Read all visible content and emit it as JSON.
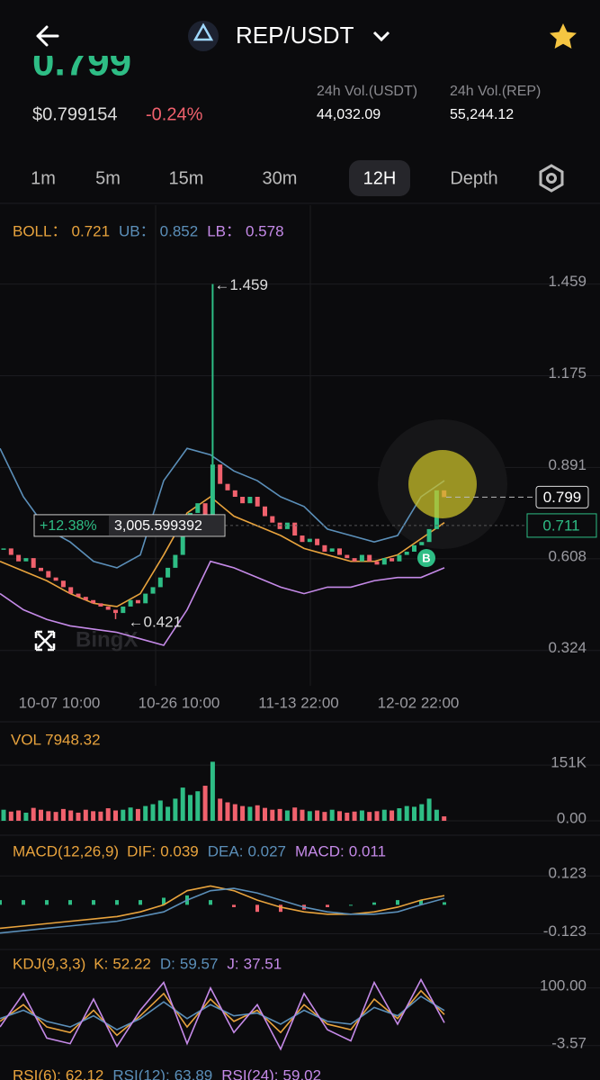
{
  "header": {
    "pair": "REP/USDT",
    "big_price": "0.799"
  },
  "ticker": {
    "price": "$0.799154",
    "change": "-0.24%",
    "stats": [
      {
        "label": "24h Vol.(USDT)",
        "value": "44,032.09"
      },
      {
        "label": "24h Vol.(REP)",
        "value": "55,244.12"
      }
    ]
  },
  "tabs": [
    "1m",
    "5m",
    "15m",
    "30m",
    "12H",
    "Depth"
  ],
  "active_tab": 4,
  "price_chart": {
    "type": "candlestick",
    "ylim": [
      0.22,
      1.67
    ],
    "yticks": [
      1.459,
      1.175,
      0.891,
      0.608,
      0.324
    ],
    "xticks": [
      "10-07 10:00",
      "10-26 10:00",
      "11-13 22:00",
      "12-02 22:00"
    ],
    "legend": [
      {
        "label": "BOLL：",
        "value": "0.721",
        "color": "#e8a33d"
      },
      {
        "label": "UB：",
        "value": "0.852",
        "color": "#5b8fb9"
      },
      {
        "label": "LB：",
        "value": "0.578",
        "color": "#c58ae8"
      }
    ],
    "closes": [
      0.64,
      0.62,
      0.6,
      0.61,
      0.58,
      0.57,
      0.55,
      0.54,
      0.52,
      0.5,
      0.49,
      0.48,
      0.47,
      0.46,
      0.45,
      0.44,
      0.46,
      0.48,
      0.47,
      0.5,
      0.52,
      0.55,
      0.58,
      0.62,
      0.68,
      0.75,
      0.78,
      0.72,
      0.9,
      0.84,
      0.82,
      0.8,
      0.78,
      0.8,
      0.77,
      0.74,
      0.72,
      0.7,
      0.72,
      0.68,
      0.66,
      0.67,
      0.65,
      0.63,
      0.64,
      0.62,
      0.61,
      0.6,
      0.62,
      0.6,
      0.59,
      0.61,
      0.6,
      0.62,
      0.63,
      0.65,
      0.66,
      0.7,
      0.82,
      0.799
    ],
    "lines": [
      {
        "color": "#e8a33d",
        "values": [
          0.6,
          0.57,
          0.54,
          0.5,
          0.47,
          0.46,
          0.5,
          0.62,
          0.75,
          0.8,
          0.74,
          0.71,
          0.68,
          0.64,
          0.62,
          0.6,
          0.6,
          0.62,
          0.67,
          0.72
        ]
      },
      {
        "color": "#5b8fb9",
        "values": [
          0.95,
          0.8,
          0.7,
          0.66,
          0.6,
          0.58,
          0.62,
          0.85,
          0.95,
          0.93,
          0.88,
          0.85,
          0.8,
          0.77,
          0.7,
          0.68,
          0.66,
          0.68,
          0.8,
          0.85
        ]
      },
      {
        "color": "#c58ae8",
        "values": [
          0.5,
          0.45,
          0.42,
          0.4,
          0.39,
          0.38,
          0.36,
          0.34,
          0.45,
          0.6,
          0.58,
          0.55,
          0.52,
          0.5,
          0.52,
          0.52,
          0.54,
          0.55,
          0.55,
          0.58
        ]
      }
    ],
    "max_label": 1.459,
    "min_label": 0.421,
    "last_price": 0.799,
    "line_price": 0.711,
    "measure_pct": "+12.38%",
    "measure_value": "3,005.599392",
    "buy_marker": "B",
    "watermark": "BingX"
  },
  "volume_chart": {
    "label": "VOL 7948.32",
    "ylim": [
      0,
      200000
    ],
    "yticks": [
      {
        "value": 151000,
        "label": "151K"
      },
      {
        "value": 0,
        "label": "0.00"
      }
    ],
    "values": [
      30000,
      25000,
      28000,
      22000,
      35000,
      30000,
      26000,
      24000,
      32000,
      28000,
      22000,
      30000,
      26000,
      25000,
      34000,
      28000,
      30000,
      36000,
      32000,
      40000,
      45000,
      55000,
      38000,
      60000,
      90000,
      70000,
      80000,
      95000,
      160000,
      60000,
      50000,
      45000,
      40000,
      38000,
      42000,
      35000,
      30000,
      32000,
      28000,
      36000,
      30000,
      26000,
      28000,
      24000,
      30000,
      26000,
      22000,
      25000,
      28000,
      24000,
      26000,
      30000,
      28000,
      34000,
      40000,
      38000,
      45000,
      60000,
      30000,
      12000
    ]
  },
  "macd_chart": {
    "ylim": [
      -0.19,
      0.25
    ],
    "yticks": [
      0.123,
      -0.123
    ],
    "legend": [
      {
        "label": "MACD(12,26,9)",
        "value": "",
        "color": "#e8a33d"
      },
      {
        "label": "DIF:",
        "value": "0.039",
        "color": "#e8a33d"
      },
      {
        "label": "DEA:",
        "value": "0.027",
        "color": "#5b8fb9"
      },
      {
        "label": "MACD:",
        "value": "0.011",
        "color": "#c58ae8"
      }
    ],
    "lines": [
      {
        "color": "#e8a33d",
        "values": [
          -0.1,
          -0.09,
          -0.08,
          -0.07,
          -0.06,
          -0.05,
          -0.03,
          0.0,
          0.06,
          0.08,
          0.06,
          0.02,
          -0.01,
          -0.03,
          -0.04,
          -0.04,
          -0.03,
          -0.01,
          0.02,
          0.039
        ]
      },
      {
        "color": "#5b8fb9",
        "values": [
          -0.12,
          -0.11,
          -0.1,
          -0.09,
          -0.08,
          -0.07,
          -0.05,
          -0.03,
          0.02,
          0.06,
          0.07,
          0.05,
          0.02,
          -0.01,
          -0.03,
          -0.04,
          -0.04,
          -0.03,
          0.0,
          0.027
        ]
      }
    ],
    "hist": [
      0.02,
      0.02,
      0.02,
      0.02,
      0.02,
      0.02,
      0.02,
      0.03,
      0.04,
      0.02,
      -0.01,
      -0.03,
      -0.03,
      -0.02,
      -0.01,
      0.0,
      0.01,
      0.02,
      0.02,
      0.011
    ]
  },
  "kdj_chart": {
    "ylim": [
      -33,
      153
    ],
    "yticks": [
      {
        "value": 100,
        "label": "100.00"
      },
      -3.57
    ],
    "legend": [
      {
        "label": "KDJ(9,3,3)",
        "value": "",
        "color": "#e8a33d"
      },
      {
        "label": "K:",
        "value": "52.22",
        "color": "#e8a33d"
      },
      {
        "label": "D:",
        "value": "59.57",
        "color": "#5b8fb9"
      },
      {
        "label": "J:",
        "value": "37.51",
        "color": "#c58ae8"
      }
    ],
    "lines": [
      {
        "color": "#e8a33d",
        "values": [
          40,
          70,
          30,
          20,
          60,
          15,
          50,
          90,
          30,
          80,
          40,
          60,
          20,
          70,
          35,
          25,
          80,
          45,
          95,
          52.22
        ]
      },
      {
        "color": "#5b8fb9",
        "values": [
          45,
          60,
          40,
          30,
          50,
          25,
          45,
          75,
          45,
          70,
          50,
          55,
          35,
          60,
          40,
          35,
          65,
          50,
          85,
          59.57
        ]
      },
      {
        "color": "#c58ae8",
        "values": [
          30,
          90,
          10,
          0,
          80,
          -5,
          60,
          110,
          0,
          100,
          20,
          70,
          -10,
          90,
          25,
          5,
          110,
          35,
          115,
          37.51
        ]
      }
    ]
  },
  "rsi_legend": [
    {
      "label": "RSI(6):",
      "value": "62.12",
      "color": "#e8a33d"
    },
    {
      "label": "RSI(12):",
      "value": "63.89",
      "color": "#5b8fb9"
    },
    {
      "label": "RSI(24):",
      "value": "59.02",
      "color": "#c58ae8"
    }
  ]
}
